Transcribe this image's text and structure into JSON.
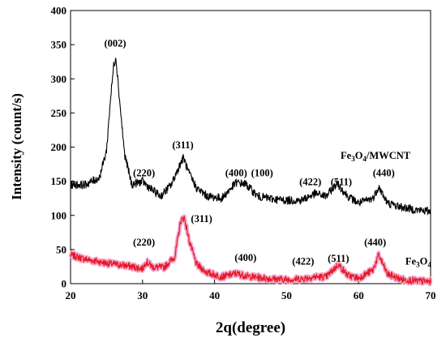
{
  "chart_data": {
    "type": "line",
    "xlabel": "2q(degree)",
    "ylabel": "Intensity (count/s)",
    "xlim": [
      20,
      70
    ],
    "ylim": [
      0,
      400
    ],
    "xticks": [
      20,
      30,
      40,
      50,
      60,
      70
    ],
    "yticks": [
      0,
      50,
      100,
      150,
      200,
      250,
      300,
      350,
      400
    ],
    "grid": false,
    "colors": {
      "series_1": "#000000",
      "series_2": "#e8191f",
      "series_2_halo": "#f2a6cf"
    },
    "series": [
      {
        "name": "Fe3O4/MWCNT",
        "label_parts": {
          "a": "Fe",
          "b": "3",
          "c": "O",
          "d": "4",
          "e": "/MWCNT"
        },
        "x": [
          20,
          22,
          24,
          25,
          25.5,
          26,
          26.3,
          26.8,
          27.5,
          28.5,
          30,
          31,
          32.5,
          34,
          35.2,
          35.7,
          36.3,
          37.5,
          39,
          41,
          43,
          44.3,
          46,
          48,
          50,
          52,
          54,
          55.5,
          57,
          58.5,
          60,
          62,
          62.8,
          64,
          66,
          68,
          70
        ],
        "y": [
          145,
          145,
          155,
          195,
          265,
          320,
          332,
          270,
          190,
          145,
          150,
          140,
          128,
          145,
          175,
          185,
          165,
          140,
          128,
          125,
          148,
          146,
          128,
          124,
          122,
          122,
          132,
          128,
          147,
          128,
          118,
          125,
          142,
          118,
          112,
          108,
          106
        ]
      },
      {
        "name": "Fe3O4",
        "label_parts": {
          "a": "Fe",
          "b": "3",
          "c": "O",
          "d": "4"
        },
        "x": [
          20,
          22,
          25,
          28,
          30,
          30.5,
          31.5,
          33,
          34.5,
          35.3,
          35.8,
          36.5,
          37.5,
          39,
          41,
          43,
          44.5,
          46,
          48,
          50,
          52,
          54,
          55.5,
          57.2,
          58.5,
          60,
          62,
          62.8,
          64,
          66,
          68,
          70
        ],
        "y": [
          42,
          36,
          30,
          26,
          22,
          32,
          24,
          24,
          40,
          92,
          97,
          62,
          28,
          16,
          10,
          15,
          11,
          9,
          7,
          6,
          7,
          10,
          10,
          28,
          12,
          8,
          20,
          42,
          14,
          6,
          4,
          3
        ]
      }
    ],
    "annotations": [
      {
        "text": "(002)",
        "x": 26.2,
        "y": 347
      },
      {
        "text": "(311)",
        "x": 35.6,
        "y": 198
      },
      {
        "text": "(220)",
        "x": 30.2,
        "y": 157
      },
      {
        "text": "(400)",
        "x": 43.0,
        "y": 157
      },
      {
        "text": "(100)",
        "x": 46.6,
        "y": 157
      },
      {
        "text": "(422)",
        "x": 53.3,
        "y": 144
      },
      {
        "text": "(511)",
        "x": 57.6,
        "y": 144
      },
      {
        "text": "(440)",
        "x": 63.5,
        "y": 157
      },
      {
        "text": "(311)",
        "x": 38.2,
        "y": 90
      },
      {
        "text": "(220)",
        "x": 30.2,
        "y": 56
      },
      {
        "text": "(400)",
        "x": 44.3,
        "y": 33
      },
      {
        "text": "(422)",
        "x": 52.3,
        "y": 28
      },
      {
        "text": "(511)",
        "x": 57.2,
        "y": 32
      },
      {
        "text": "(440)",
        "x": 62.3,
        "y": 56
      }
    ],
    "series_label_positions": [
      {
        "series": 0,
        "x": 57.5,
        "y": 183
      },
      {
        "series": 1,
        "x": 66.5,
        "y": 28
      }
    ]
  }
}
